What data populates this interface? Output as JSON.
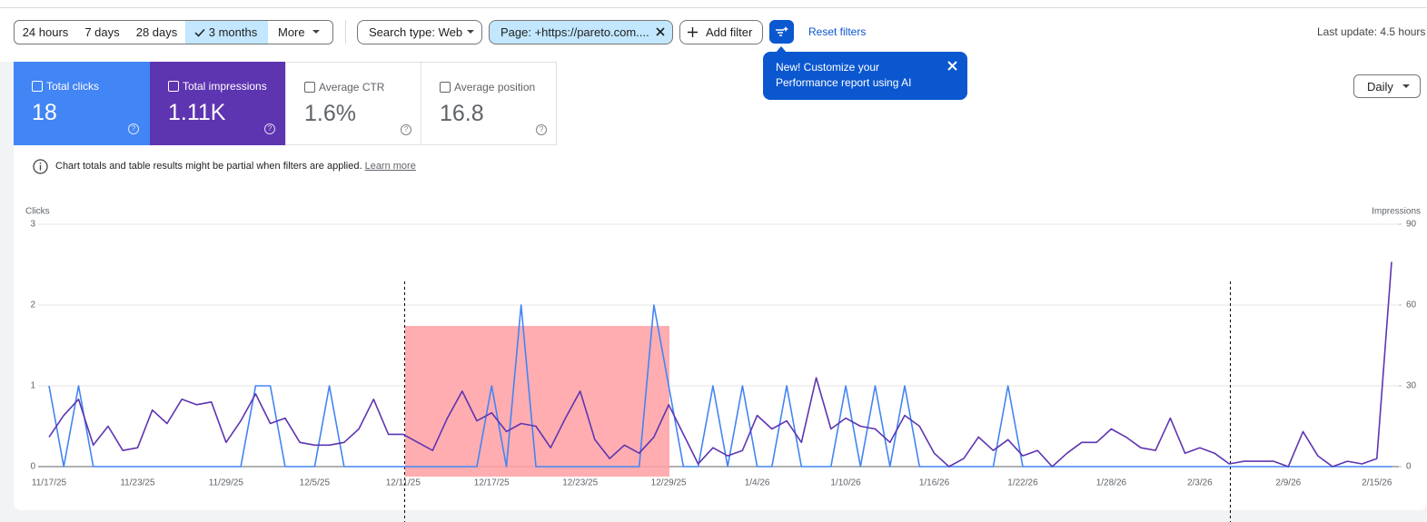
{
  "toolbar": {
    "date_ranges": [
      "24 hours",
      "7 days",
      "28 days",
      "3 months"
    ],
    "more": "More",
    "filters": [
      "Search type: Web",
      "Page: +https://pareto.com...."
    ],
    "add_filter": "Add filter",
    "reset_filters": "Reset filters",
    "last_update": "Last update: 4.5 hours"
  },
  "tooltip": {
    "text": "New! Customize your Performance report using AI"
  },
  "metrics": [
    {
      "label": "Total clicks",
      "value": "18"
    },
    {
      "label": "Total impressions",
      "value": "1.11K"
    },
    {
      "label": "Average CTR",
      "value": "1.6%"
    },
    {
      "label": "Average position",
      "value": "16.8"
    }
  ],
  "notice": {
    "text": "Chart totals and table results might be partial when filters are applied.",
    "link": "Learn more"
  },
  "granularity": "Daily",
  "chart_data": {
    "type": "line",
    "y_label": "Clicks",
    "y2_label": "Impressions",
    "categories": [
      "11/17/25",
      null,
      null,
      null,
      null,
      null,
      "11/23/25",
      null,
      null,
      null,
      null,
      null,
      "11/29/25",
      null,
      null,
      null,
      null,
      null,
      "12/5/25",
      null,
      null,
      null,
      null,
      null,
      "12/11/25",
      null,
      null,
      null,
      null,
      null,
      "12/17/25",
      null,
      null,
      null,
      null,
      null,
      "12/23/25",
      null,
      null,
      null,
      null,
      null,
      "12/29/25",
      null,
      null,
      null,
      null,
      null,
      "1/4/26",
      null,
      null,
      null,
      null,
      null,
      "1/10/26",
      null,
      null,
      null,
      null,
      null,
      "1/16/26",
      null,
      null,
      null,
      null,
      null,
      "1/22/26",
      null,
      null,
      null,
      null,
      null,
      "1/28/26",
      null,
      null,
      null,
      null,
      null,
      "2/3/26",
      null,
      null,
      null,
      null,
      null,
      "2/9/26",
      null,
      null,
      null,
      null,
      null,
      "2/15/26",
      null
    ],
    "series": [
      {
        "name": "Clicks",
        "color": "#4285f4",
        "values": [
          1,
          0,
          1,
          0,
          0,
          0,
          0,
          0,
          0,
          0,
          0,
          0,
          0,
          0,
          1,
          1,
          0,
          0,
          0,
          1,
          0,
          0,
          0,
          0,
          0,
          0,
          0,
          0,
          0,
          0,
          1,
          0,
          2,
          0,
          0,
          0,
          0,
          0,
          0,
          0,
          0,
          2,
          1,
          0,
          0,
          1,
          0,
          1,
          0,
          0,
          1,
          0,
          0,
          0,
          1,
          0,
          1,
          0,
          1,
          0,
          0,
          0,
          0,
          0,
          0,
          1,
          0,
          0,
          0,
          0,
          0,
          0,
          0,
          0,
          0,
          0,
          0,
          0,
          0,
          0,
          0,
          0,
          0,
          0,
          0,
          0,
          0,
          0,
          0,
          0,
          0,
          0
        ]
      },
      {
        "name": "Impressions",
        "color": "#5e35b1",
        "axis": "y2",
        "values": [
          11,
          19,
          25,
          8,
          15,
          6,
          7,
          21,
          16,
          25,
          23,
          24,
          9,
          17,
          27,
          16,
          18,
          9,
          8,
          8,
          9,
          14,
          25,
          12,
          12,
          9,
          6,
          18,
          28,
          17,
          20,
          13,
          16,
          15,
          7,
          18,
          28,
          10,
          3,
          8,
          5,
          11,
          23,
          12,
          1,
          7,
          4,
          6,
          19,
          14,
          17,
          9,
          33,
          14,
          18,
          15,
          14,
          9,
          19,
          15,
          5,
          0,
          3,
          11,
          6,
          10,
          4,
          6,
          0,
          5,
          9,
          9,
          14,
          11,
          7,
          6,
          18,
          5,
          7,
          5,
          1,
          2,
          2,
          2,
          0,
          13,
          4,
          0,
          2,
          1,
          3,
          76
        ]
      }
    ],
    "ylim": [
      0,
      3
    ],
    "yticks": [
      0,
      1,
      2,
      3
    ],
    "y2lim": [
      0,
      90
    ],
    "y2ticks": [
      0,
      30,
      60,
      90
    ],
    "grid": true
  }
}
